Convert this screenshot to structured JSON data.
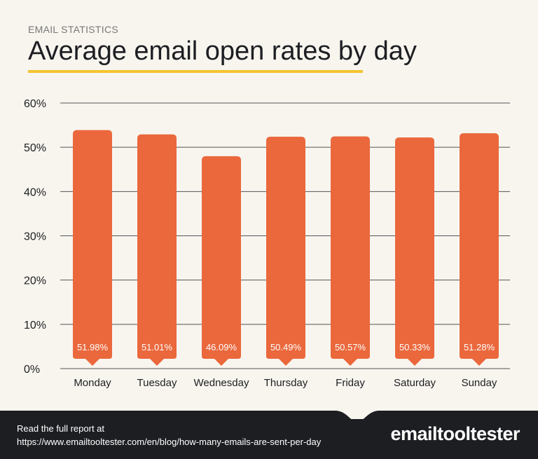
{
  "header": {
    "kicker": "EMAIL STATISTICS",
    "title": "Average email open rates by day"
  },
  "footer": {
    "line1": "Read the full report at",
    "line2": "https://www.emailtooltester.com/en/blog/how-many-emails-are-sent-per-day",
    "logo": "emailtooltester"
  },
  "colors": {
    "bar": "#ea683c",
    "background": "#f8f5ef",
    "footer": "#1d1e22",
    "underline": "#f4c430"
  },
  "chart_data": {
    "type": "bar",
    "title": "Average email open rates by day",
    "categories": [
      "Monday",
      "Tuesday",
      "Wednesday",
      "Thursday",
      "Friday",
      "Saturday",
      "Sunday"
    ],
    "values": [
      51.98,
      51.01,
      46.09,
      50.49,
      50.57,
      50.33,
      51.28
    ],
    "data_labels": [
      "51.98%",
      "51.01%",
      "46.09%",
      "50.49%",
      "50.57%",
      "50.33%",
      "51.28%"
    ],
    "yticks": [
      "0%",
      "10%",
      "20%",
      "30%",
      "40%",
      "50%",
      "60%"
    ],
    "ylim": [
      0,
      60
    ],
    "grid": true,
    "legend": "none"
  }
}
